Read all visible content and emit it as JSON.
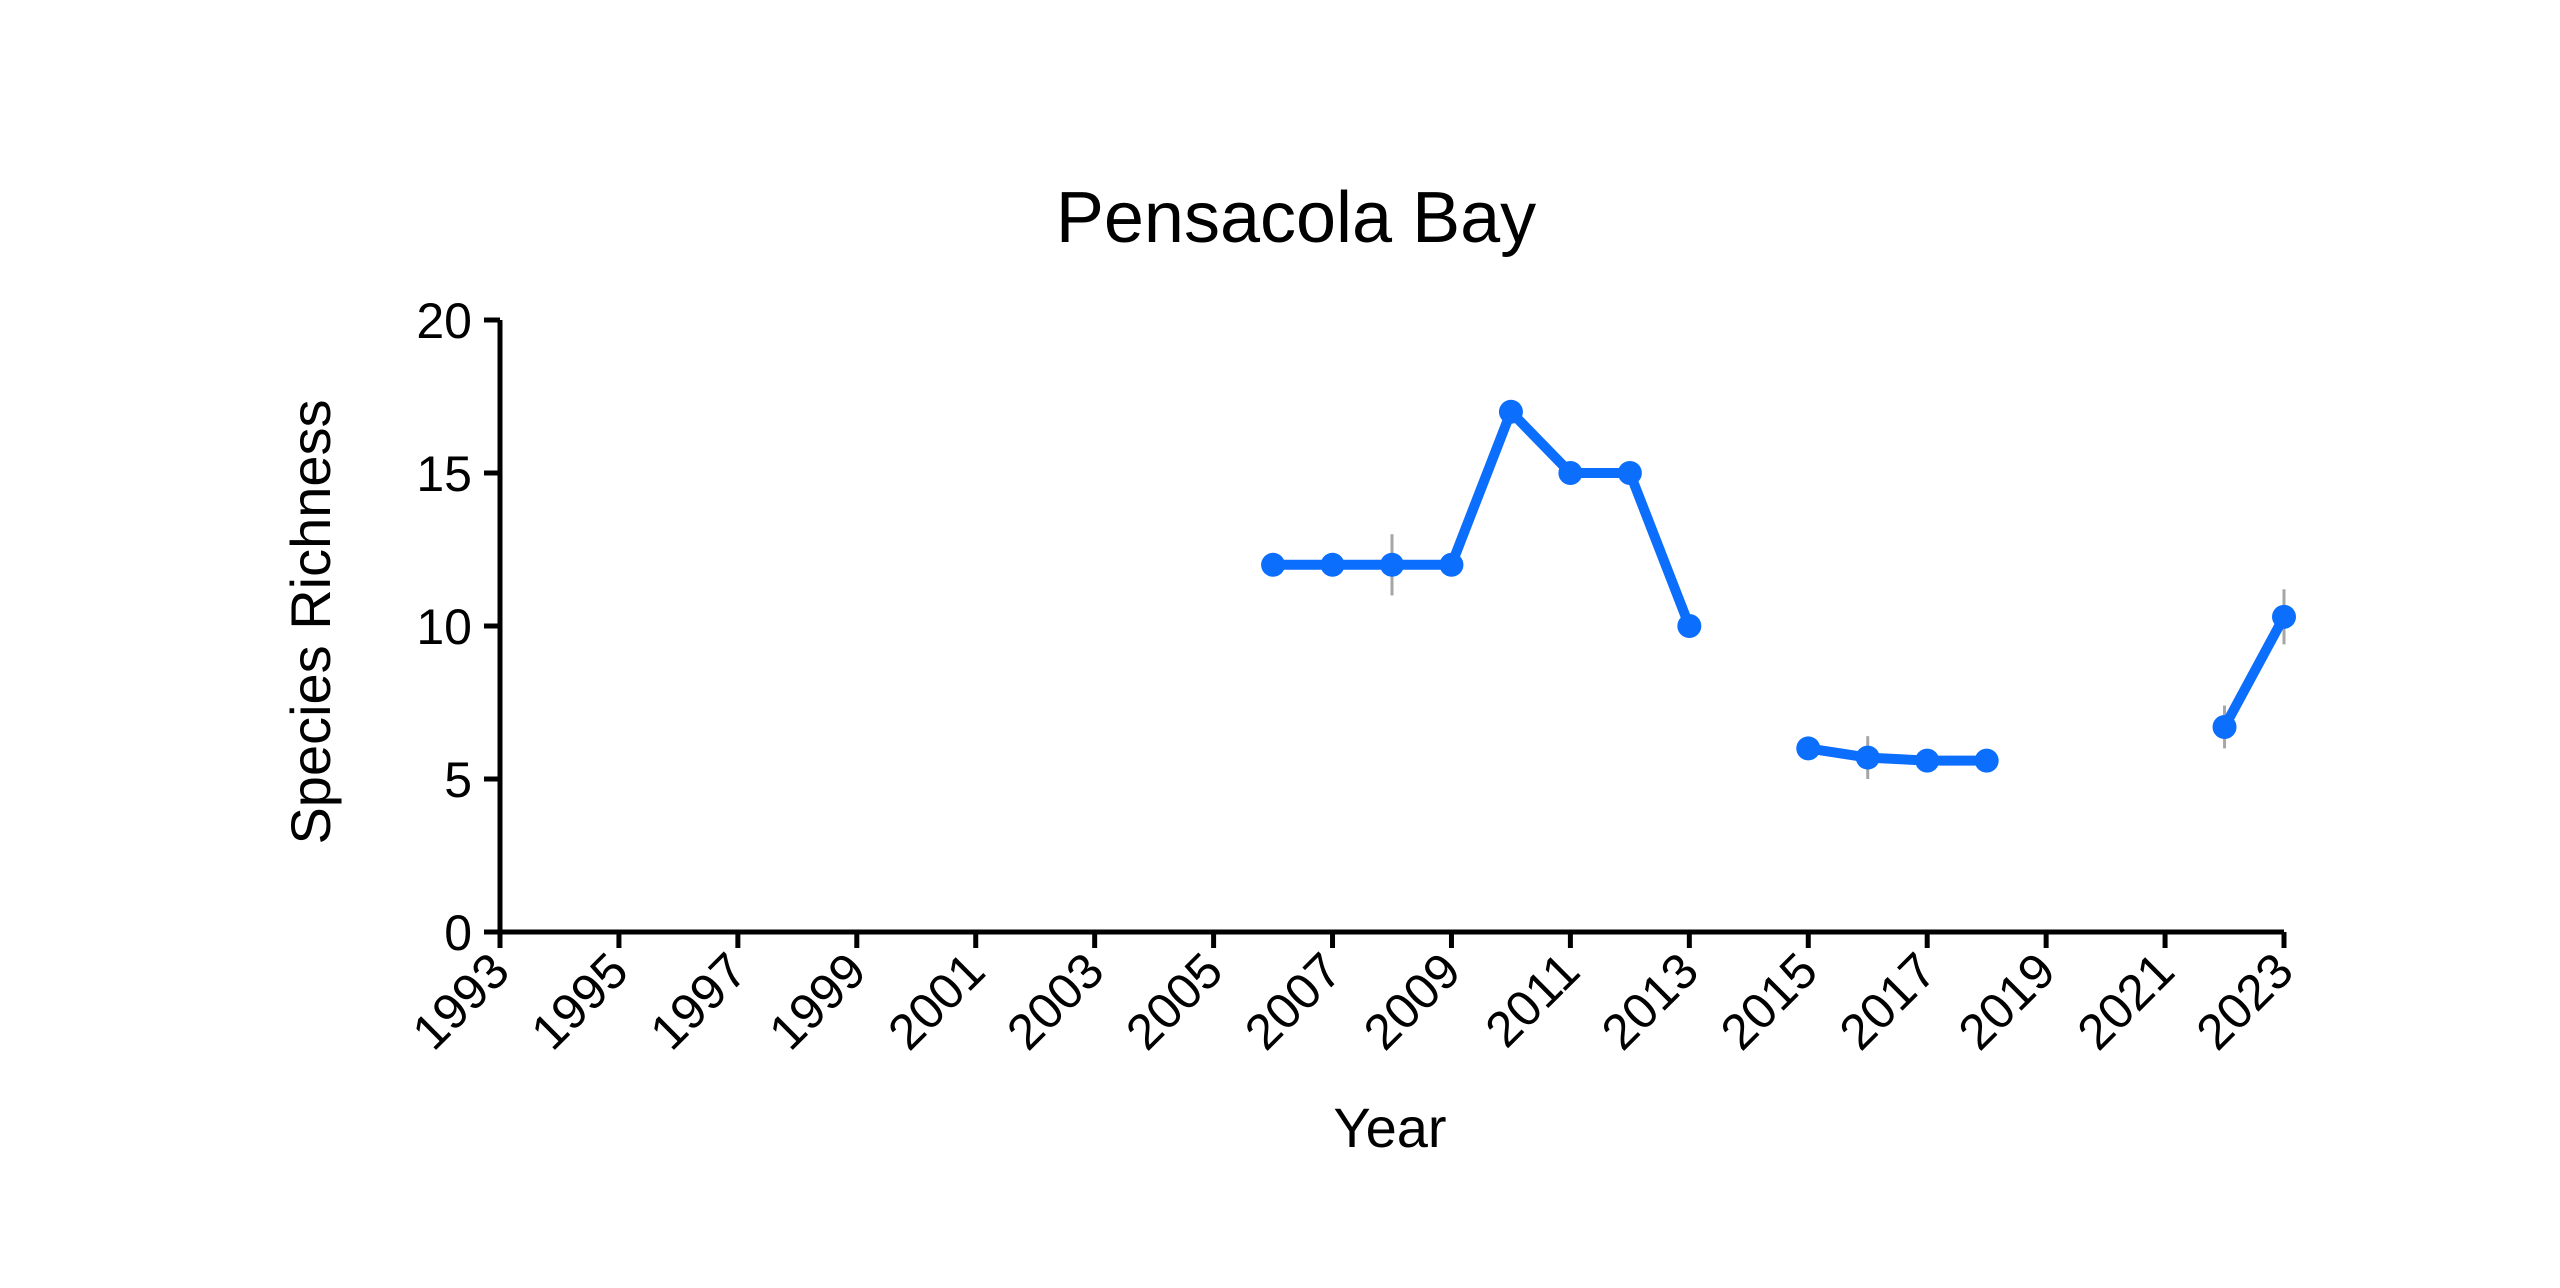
{
  "chart_data": {
    "type": "line",
    "title": "Pensacola Bay",
    "xlabel": "Year",
    "ylabel": "Species Richness",
    "xlim": [
      1993,
      2023
    ],
    "ylim": [
      0,
      20
    ],
    "x_ticks": [
      "1993",
      "1995",
      "1997",
      "1999",
      "2001",
      "2003",
      "2005",
      "2007",
      "2009",
      "2011",
      "2013",
      "2015",
      "2017",
      "2019",
      "2021",
      "2023"
    ],
    "y_ticks": [
      "0",
      "5",
      "10",
      "15",
      "20"
    ],
    "grid": false,
    "legend": "none",
    "series": [
      {
        "color": "#0B6EFD",
        "points": [
          {
            "x": 2006,
            "y": 12.0
          },
          {
            "x": 2007,
            "y": 12.0
          },
          {
            "x": 2008,
            "y": 12.0,
            "err": 1.0
          },
          {
            "x": 2009,
            "y": 12.0
          },
          {
            "x": 2010,
            "y": 17.0
          },
          {
            "x": 2011,
            "y": 15.0
          },
          {
            "x": 2012,
            "y": 15.0
          },
          {
            "x": 2013,
            "y": 10.0
          },
          {
            "x": 2014,
            "y": null
          },
          {
            "x": 2015,
            "y": 6.0
          },
          {
            "x": 2016,
            "y": 5.7,
            "err": 0.7
          },
          {
            "x": 2017,
            "y": 5.6,
            "err": 0.3
          },
          {
            "x": 2018,
            "y": 5.6,
            "err": 0.3
          },
          {
            "x": 2019,
            "y": null
          },
          {
            "x": 2020,
            "y": null
          },
          {
            "x": 2021,
            "y": null
          },
          {
            "x": 2022,
            "y": 6.7,
            "err": 0.7
          },
          {
            "x": 2023,
            "y": 10.3,
            "err": 0.9
          }
        ]
      }
    ]
  }
}
